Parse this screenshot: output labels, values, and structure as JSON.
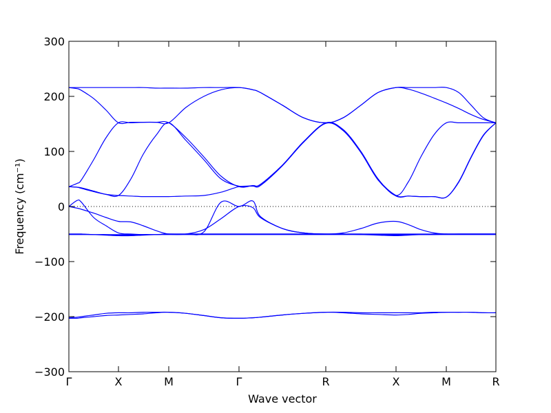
{
  "chart_data": {
    "type": "line",
    "xlabel": "Wave vector",
    "ylabel": "Frequency (cm⁻¹)",
    "color": "#0000ff",
    "hline": 0,
    "x": [
      0,
      12,
      18,
      36,
      54,
      72,
      90,
      108,
      127,
      145,
      170,
      196,
      221,
      247,
      267,
      278,
      310,
      341,
      373,
      398,
      424,
      449,
      475,
      493,
      511,
      530,
      548,
      566,
      584,
      602,
      620
    ],
    "xlim": [
      0,
      620
    ],
    "xticks": [
      {
        "value": 0,
        "label": "Γ"
      },
      {
        "value": 72,
        "label": "X"
      },
      {
        "value": 145,
        "label": "M"
      },
      {
        "value": 247,
        "label": "Γ"
      },
      {
        "value": 373,
        "label": "R"
      },
      {
        "value": 475,
        "label": "X"
      },
      {
        "value": 548,
        "label": "M"
      },
      {
        "value": 620,
        "label": "R"
      }
    ],
    "ylim": [
      -300,
      300
    ],
    "yticks": [
      {
        "value": -300,
        "label": "−300"
      },
      {
        "value": -200,
        "label": "−200"
      },
      {
        "value": -100,
        "label": "−100"
      },
      0,
      100,
      200,
      300
    ],
    "series": [
      {
        "values": [
          216,
          216,
          216,
          216,
          216,
          216,
          216,
          216,
          215,
          215,
          215,
          216,
          216,
          216,
          212,
          207,
          184,
          161,
          152,
          161,
          184,
          207,
          216,
          216,
          216,
          216,
          216,
          207,
          184,
          161,
          152
        ]
      },
      {
        "values": [
          216,
          214,
          211,
          196,
          175,
          152,
          153,
          153,
          153,
          152,
          180,
          200,
          212,
          216,
          212,
          207,
          184,
          161,
          152,
          161,
          184,
          207,
          216,
          213,
          206,
          197,
          188,
          178,
          167,
          158,
          152
        ]
      },
      {
        "values": [
          36,
          42,
          48,
          85,
          125,
          152,
          152,
          153,
          153,
          152,
          125,
          90,
          55,
          36,
          38,
          40,
          75,
          118,
          152,
          140,
          100,
          50,
          20,
          45,
          90,
          130,
          152,
          152,
          152,
          152,
          152
        ]
      },
      {
        "values": [
          36,
          35,
          34,
          28,
          22,
          20,
          50,
          95,
          130,
          152,
          120,
          85,
          50,
          37,
          38,
          40,
          75,
          118,
          151,
          138,
          98,
          48,
          19,
          19,
          18,
          18,
          17,
          45,
          90,
          130,
          152
        ]
      },
      {
        "values": [
          36,
          35,
          33,
          27,
          22,
          20,
          19,
          18,
          18,
          18,
          19,
          20,
          26,
          36,
          37,
          38,
          74,
          117,
          151,
          139,
          99,
          49,
          20,
          19,
          18,
          18,
          17,
          44,
          89,
          129,
          152
        ]
      },
      {
        "values": [
          0,
          11,
          8,
          -20,
          -35,
          -48,
          -50,
          -51,
          -51,
          -50,
          -50,
          -46,
          8,
          0,
          10,
          -18,
          -40,
          -48,
          -50,
          -48,
          -40,
          -30,
          -27,
          -33,
          -42,
          -48,
          -50,
          -50,
          -50,
          -50,
          -50
        ]
      },
      {
        "values": [
          0,
          -3,
          -5,
          -12,
          -20,
          -27,
          -28,
          -35,
          -44,
          -50,
          -50,
          -42,
          -22,
          0,
          -2,
          -20,
          -40,
          -48,
          -50,
          -50,
          -50,
          -51,
          -52,
          -51,
          -51,
          -51,
          -50,
          -50,
          -50,
          -50,
          -50
        ]
      },
      {
        "values": [
          -50,
          -50,
          -50,
          -51,
          -51,
          -52,
          -52,
          -51,
          -51,
          -50,
          -50,
          -50,
          -50,
          -50,
          -50,
          -50,
          -50,
          -50,
          -50,
          -50,
          -51,
          -52,
          -53,
          -52,
          -51,
          -50,
          -50,
          -50,
          -50,
          -50,
          -50
        ]
      },
      {
        "values": [
          -51,
          -51,
          -51,
          -51,
          -51,
          -51,
          -51,
          -51,
          -51,
          -51,
          -51,
          -51,
          -51,
          -51,
          -51,
          -51,
          -51,
          -51,
          -51,
          -51,
          -51,
          -51,
          -51,
          -51,
          -51,
          -51,
          -51,
          -51,
          -51,
          -51,
          -51
        ]
      },
      {
        "values": [
          -50,
          -50,
          -50,
          -51,
          -52,
          -53,
          -53,
          -52,
          -51,
          -50,
          -50,
          -50,
          -50,
          -50,
          -50,
          -50,
          -50,
          -50,
          -50,
          -50,
          -50,
          -50,
          -50,
          -50,
          -50,
          -50,
          -50,
          -50,
          -50,
          -50,
          -50
        ]
      },
      {
        "values": [
          -203,
          -203,
          -202,
          -200,
          -198,
          -197,
          -196,
          -195,
          -193,
          -192,
          -194,
          -198,
          -202,
          -203,
          -202,
          -201,
          -197,
          -194,
          -192,
          -193,
          -195,
          -196,
          -197,
          -196,
          -194,
          -193,
          -192,
          -192,
          -192,
          -193,
          -193
        ]
      },
      {
        "values": [
          -202,
          -201,
          -200,
          -197,
          -194,
          -193,
          -193,
          -192,
          -192,
          -192,
          -194,
          -198,
          -202,
          -203,
          -202,
          -201,
          -197,
          -194,
          -192,
          -192,
          -193,
          -193,
          -193,
          -193,
          -193,
          -192,
          -192,
          -192,
          -192,
          -193,
          -193
        ]
      }
    ]
  }
}
